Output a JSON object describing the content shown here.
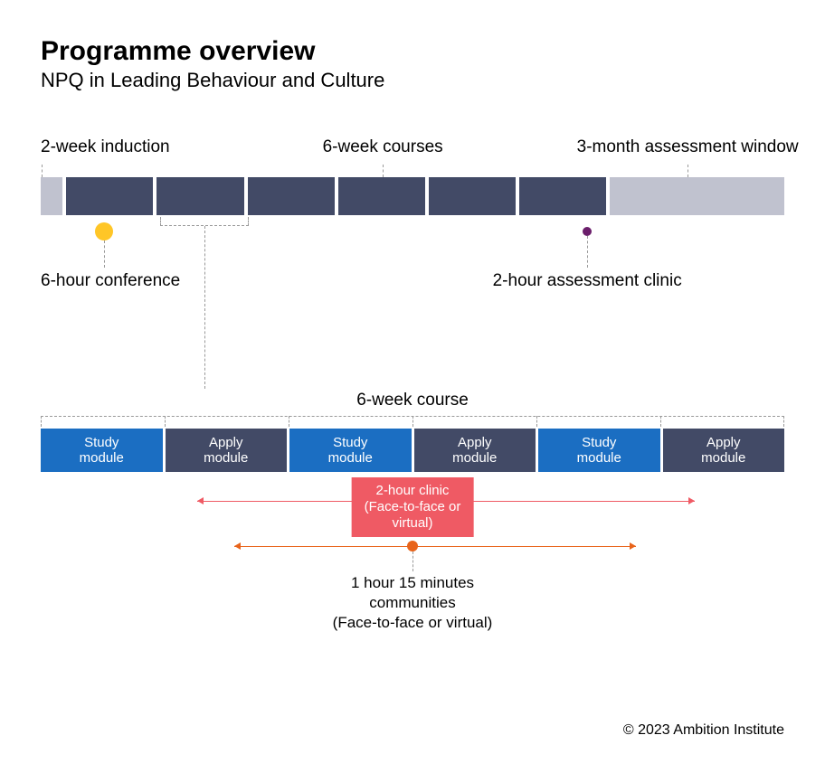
{
  "title": "Programme overview",
  "subtitle": "NPQ in Leading Behaviour and Culture",
  "timeline": {
    "labels": {
      "induction": "2-week induction",
      "courses": "6-week courses",
      "assessment": "3-month assessment window"
    },
    "segments": [
      {
        "width_pct": 3.0,
        "color": "#c0c2cf"
      },
      {
        "width_pct": 12.0,
        "color": "#424a66"
      },
      {
        "width_pct": 12.0,
        "color": "#424a66"
      },
      {
        "width_pct": 12.0,
        "color": "#424a66"
      },
      {
        "width_pct": 12.0,
        "color": "#424a66"
      },
      {
        "width_pct": 12.0,
        "color": "#424a66"
      },
      {
        "width_pct": 12.0,
        "color": "#424a66"
      },
      {
        "width_pct": 24.0,
        "color": "#c0c2cf"
      }
    ],
    "conference": {
      "label": "6-hour conference",
      "dot_color": "#ffc627",
      "dot_size": 20,
      "x_pct": 8.5
    },
    "assessment_clinic": {
      "label": "2-hour assessment clinic",
      "dot_color": "#6b1e6b",
      "dot_size": 10,
      "x_pct": 73.5
    },
    "courses_label_x_pct": 46.0,
    "assessment_label_x_pct": 87.0,
    "zoom_segment_index": 2
  },
  "detail": {
    "title": "6-week course",
    "modules": [
      {
        "label": "Study\nmodule",
        "color": "#1b6ec2"
      },
      {
        "label": "Apply\nmodule",
        "color": "#424a66"
      },
      {
        "label": "Study\nmodule",
        "color": "#1b6ec2"
      },
      {
        "label": "Apply\nmodule",
        "color": "#424a66"
      },
      {
        "label": "Study\nmodule",
        "color": "#1b6ec2"
      },
      {
        "label": "Apply\nmodule",
        "color": "#424a66"
      }
    ],
    "clinic": {
      "label": "2-hour clinic\n(Face-to-face or\nvirtual)",
      "bg_color": "#ef5a64",
      "range_color": "#ef5a64",
      "range_start_pct": 21,
      "range_end_pct": 88
    },
    "community": {
      "label": "1 hour 15 minutes\ncommunities\n(Face-to-face or virtual)",
      "dot_color": "#e8641b",
      "range_color": "#e8641b",
      "range_start_pct": 26,
      "range_end_pct": 80
    }
  },
  "copyright": "© 2023 Ambition Institute",
  "colors": {
    "text": "#000000",
    "dash": "#999999",
    "bg": "#ffffff"
  }
}
